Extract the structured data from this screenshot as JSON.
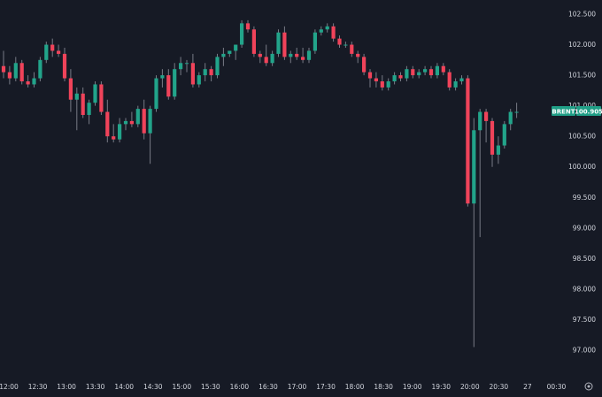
{
  "symbol": {
    "name": "BRENT",
    "last_price": "100.905",
    "colors": {
      "up": "#22a48a",
      "down": "#f0435a",
      "badge": "#1f9e86"
    }
  },
  "colors": {
    "background": "#161a25",
    "axis_text": "#d1d4dc",
    "wick": "#787b86"
  },
  "icons": {
    "axis_settings": "gear-icon"
  },
  "chart_data": {
    "type": "candlestick",
    "ylim": [
      96.8,
      102.75
    ],
    "y_ticks": [
      "102.500",
      "102.000",
      "101.500",
      "101.000",
      "100.500",
      "100.000",
      "99.500",
      "99.000",
      "98.500",
      "98.000",
      "97.500",
      "97.000"
    ],
    "x_ticks": [
      "12:00",
      "12:30",
      "13:00",
      "13:30",
      "14:00",
      "14:30",
      "15:00",
      "15:30",
      "16:00",
      "16:30",
      "17:00",
      "17:30",
      "18:00",
      "18:30",
      "19:00",
      "19:30",
      "20:00",
      "20:30",
      "27",
      "00:30"
    ],
    "candles": [
      [
        101.65,
        101.9,
        101.45,
        101.55
      ],
      [
        101.55,
        101.65,
        101.35,
        101.45
      ],
      [
        101.45,
        101.8,
        101.4,
        101.7
      ],
      [
        101.7,
        101.75,
        101.35,
        101.4
      ],
      [
        101.4,
        101.5,
        101.3,
        101.35
      ],
      [
        101.35,
        101.55,
        101.3,
        101.45
      ],
      [
        101.45,
        101.8,
        101.4,
        101.75
      ],
      [
        101.75,
        102.05,
        101.7,
        102.0
      ],
      [
        102.0,
        102.1,
        101.8,
        101.9
      ],
      [
        101.9,
        102.0,
        101.8,
        101.85
      ],
      [
        101.85,
        101.95,
        101.4,
        101.45
      ],
      [
        101.45,
        101.6,
        100.9,
        101.1
      ],
      [
        101.1,
        101.3,
        100.6,
        101.2
      ],
      [
        101.2,
        101.3,
        100.8,
        100.85
      ],
      [
        100.85,
        101.1,
        100.7,
        101.05
      ],
      [
        101.05,
        101.4,
        101.0,
        101.35
      ],
      [
        101.35,
        101.4,
        100.85,
        100.9
      ],
      [
        100.9,
        101.1,
        100.4,
        100.5
      ],
      [
        100.5,
        100.7,
        100.4,
        100.45
      ],
      [
        100.45,
        100.8,
        100.4,
        100.7
      ],
      [
        100.7,
        100.8,
        100.6,
        100.75
      ],
      [
        100.75,
        100.9,
        100.65,
        100.7
      ],
      [
        100.7,
        101.0,
        100.65,
        100.95
      ],
      [
        100.95,
        101.1,
        100.45,
        100.55
      ],
      [
        100.55,
        101.0,
        100.05,
        100.95
      ],
      [
        100.95,
        101.5,
        100.9,
        101.45
      ],
      [
        101.45,
        101.6,
        101.3,
        101.5
      ],
      [
        101.5,
        101.6,
        101.1,
        101.15
      ],
      [
        101.15,
        101.7,
        101.1,
        101.6
      ],
      [
        101.6,
        101.8,
        101.5,
        101.7
      ],
      [
        101.7,
        101.75,
        101.55,
        101.7
      ],
      [
        101.7,
        101.85,
        101.3,
        101.35
      ],
      [
        101.35,
        101.55,
        101.3,
        101.5
      ],
      [
        101.5,
        101.7,
        101.4,
        101.6
      ],
      [
        101.6,
        101.65,
        101.4,
        101.5
      ],
      [
        101.5,
        101.85,
        101.45,
        101.8
      ],
      [
        101.8,
        101.95,
        101.65,
        101.85
      ],
      [
        101.85,
        101.9,
        101.8,
        101.9
      ],
      [
        101.9,
        102.0,
        101.75,
        102.0
      ],
      [
        102.0,
        102.4,
        101.95,
        102.35
      ],
      [
        102.35,
        102.4,
        102.2,
        102.25
      ],
      [
        102.25,
        102.3,
        101.8,
        101.85
      ],
      [
        101.85,
        101.9,
        101.7,
        101.8
      ],
      [
        101.8,
        102.0,
        101.65,
        101.7
      ],
      [
        101.7,
        101.9,
        101.65,
        101.85
      ],
      [
        101.85,
        102.25,
        101.8,
        102.2
      ],
      [
        102.2,
        102.3,
        101.75,
        101.8
      ],
      [
        101.8,
        101.9,
        101.7,
        101.85
      ],
      [
        101.85,
        101.95,
        101.75,
        101.8
      ],
      [
        101.8,
        101.95,
        101.7,
        101.75
      ],
      [
        101.75,
        101.95,
        101.7,
        101.9
      ],
      [
        101.9,
        102.25,
        101.85,
        102.2
      ],
      [
        102.2,
        102.3,
        102.15,
        102.25
      ],
      [
        102.25,
        102.35,
        102.2,
        102.3
      ],
      [
        102.3,
        102.35,
        102.05,
        102.1
      ],
      [
        102.1,
        102.15,
        101.95,
        102.0
      ],
      [
        102.0,
        102.05,
        101.95,
        102.0
      ],
      [
        102.0,
        102.05,
        101.8,
        101.85
      ],
      [
        101.85,
        101.9,
        101.7,
        101.8
      ],
      [
        101.8,
        101.85,
        101.5,
        101.55
      ],
      [
        101.55,
        101.6,
        101.3,
        101.45
      ],
      [
        101.45,
        101.55,
        101.3,
        101.4
      ],
      [
        101.4,
        101.5,
        101.25,
        101.3
      ],
      [
        101.3,
        101.45,
        101.25,
        101.4
      ],
      [
        101.4,
        101.55,
        101.35,
        101.5
      ],
      [
        101.5,
        101.55,
        101.4,
        101.45
      ],
      [
        101.45,
        101.65,
        101.4,
        101.6
      ],
      [
        101.6,
        101.65,
        101.45,
        101.5
      ],
      [
        101.5,
        101.6,
        101.45,
        101.55
      ],
      [
        101.55,
        101.65,
        101.5,
        101.6
      ],
      [
        101.6,
        101.65,
        101.45,
        101.5
      ],
      [
        101.5,
        101.7,
        101.45,
        101.65
      ],
      [
        101.65,
        101.7,
        101.5,
        101.55
      ],
      [
        101.55,
        101.6,
        101.25,
        101.3
      ],
      [
        101.3,
        101.45,
        101.25,
        101.4
      ],
      [
        101.4,
        101.5,
        101.35,
        101.45
      ],
      [
        101.45,
        101.5,
        99.35,
        99.4
      ],
      [
        99.4,
        100.8,
        97.05,
        100.6
      ],
      [
        100.6,
        100.95,
        98.85,
        100.9
      ],
      [
        100.9,
        100.95,
        100.4,
        100.75
      ],
      [
        100.75,
        100.8,
        100.0,
        100.2
      ],
      [
        100.2,
        100.5,
        100.05,
        100.35
      ],
      [
        100.35,
        100.75,
        100.3,
        100.7
      ],
      [
        100.7,
        100.95,
        100.6,
        100.9
      ],
      [
        100.9,
        101.05,
        100.8,
        100.9
      ]
    ]
  }
}
